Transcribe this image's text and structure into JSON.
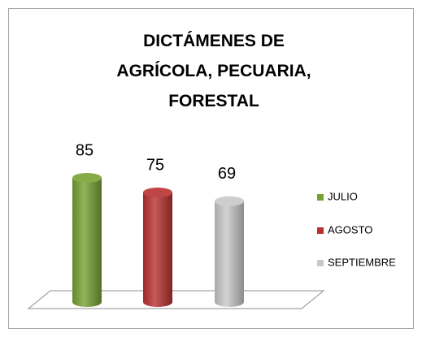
{
  "chart_data": {
    "type": "bar3d",
    "title": "DICTÁMENES DE AGRÍCOLA, PECUARIA, FORESTAL",
    "categories": [
      null
    ],
    "series": [
      {
        "name": "JULIO",
        "color": "#77a033",
        "values": [
          85
        ]
      },
      {
        "name": "AGOSTO",
        "color": "#b8312f",
        "values": [
          75
        ]
      },
      {
        "name": "SEPTIEMBRE",
        "color": "#c8c8c8",
        "values": [
          69
        ]
      }
    ],
    "legend": "right"
  }
}
